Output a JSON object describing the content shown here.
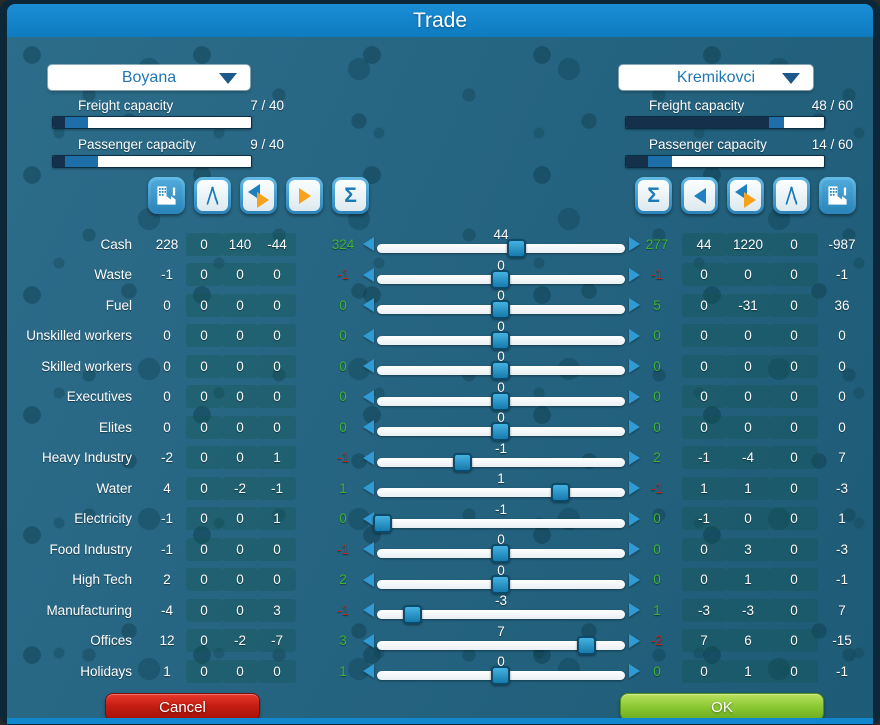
{
  "title": "Trade",
  "left_panel": {
    "city": "Boyana",
    "freight": {
      "label": "Freight capacity",
      "current": 7,
      "max": 40,
      "display": "7  /  40",
      "bar": {
        "dark": 0.06,
        "blue": 0.115
      }
    },
    "passenger": {
      "label": "Passenger capacity",
      "current": 9,
      "max": 40,
      "display": "9  /  40",
      "bar": {
        "dark": 0.06,
        "blue": 0.165
      }
    },
    "toolbar": [
      {
        "icon": "factory",
        "variant": "blue"
      },
      {
        "icon": "compass",
        "variant": "light"
      },
      {
        "icon": "transfer-both",
        "variant": "light"
      },
      {
        "icon": "transfer-right",
        "variant": "light"
      },
      {
        "icon": "sum",
        "variant": "light"
      }
    ]
  },
  "right_panel": {
    "city": "Kremikovci",
    "freight": {
      "label": "Freight capacity",
      "current": 48,
      "max": 60,
      "display": "48  /  60",
      "bar": {
        "dark": 0.72,
        "blue": 0.08
      }
    },
    "passenger": {
      "label": "Passenger capacity",
      "current": 14,
      "max": 60,
      "display": "14  /  60",
      "bar": {
        "dark": 0.11,
        "blue": 0.12
      }
    },
    "toolbar": [
      {
        "icon": "sum",
        "variant": "light"
      },
      {
        "icon": "transfer-left",
        "variant": "light"
      },
      {
        "icon": "transfer-both",
        "variant": "light"
      },
      {
        "icon": "compass",
        "variant": "light"
      },
      {
        "icon": "factory",
        "variant": "blue"
      }
    ]
  },
  "table": {
    "rows": [
      {
        "label": "Cash",
        "left": [
          "228",
          "0",
          "140",
          "-44"
        ],
        "left_total": "324",
        "left_total_color": "green",
        "slider": {
          "value": "44",
          "pos": 0.565
        },
        "right_total": "277",
        "right_total_color": "green",
        "right": [
          "44",
          "1220",
          "0",
          "-987"
        ]
      },
      {
        "label": "Waste",
        "left": [
          "-1",
          "0",
          "0",
          "0"
        ],
        "left_total": "-1",
        "left_total_color": "red",
        "slider": {
          "value": "0",
          "pos": 0.5
        },
        "right_total": "-1",
        "right_total_color": "red",
        "right": [
          "0",
          "0",
          "0",
          "-1"
        ]
      },
      {
        "label": "Fuel",
        "left": [
          "0",
          "0",
          "0",
          "0"
        ],
        "left_total": "0",
        "left_total_color": "green",
        "slider": {
          "value": "0",
          "pos": 0.5
        },
        "right_total": "5",
        "right_total_color": "green",
        "right": [
          "0",
          "-31",
          "0",
          "36"
        ]
      },
      {
        "label": "Unskilled workers",
        "left": [
          "0",
          "0",
          "0",
          "0"
        ],
        "left_total": "0",
        "left_total_color": "green",
        "slider": {
          "value": "0",
          "pos": 0.5
        },
        "right_total": "0",
        "right_total_color": "green",
        "right": [
          "0",
          "0",
          "0",
          "0"
        ]
      },
      {
        "label": "Skilled workers",
        "left": [
          "0",
          "0",
          "0",
          "0"
        ],
        "left_total": "0",
        "left_total_color": "green",
        "slider": {
          "value": "0",
          "pos": 0.5
        },
        "right_total": "0",
        "right_total_color": "green",
        "right": [
          "0",
          "0",
          "0",
          "0"
        ]
      },
      {
        "label": "Executives",
        "left": [
          "0",
          "0",
          "0",
          "0"
        ],
        "left_total": "0",
        "left_total_color": "green",
        "slider": {
          "value": "0",
          "pos": 0.5
        },
        "right_total": "0",
        "right_total_color": "green",
        "right": [
          "0",
          "0",
          "0",
          "0"
        ]
      },
      {
        "label": "Elites",
        "left": [
          "0",
          "0",
          "0",
          "0"
        ],
        "left_total": "0",
        "left_total_color": "green",
        "slider": {
          "value": "0",
          "pos": 0.5
        },
        "right_total": "0",
        "right_total_color": "green",
        "right": [
          "0",
          "0",
          "0",
          "0"
        ]
      },
      {
        "label": "Heavy Industry",
        "left": [
          "-2",
          "0",
          "0",
          "1"
        ],
        "left_total": "-1",
        "left_total_color": "red",
        "slider": {
          "value": "-1",
          "pos": 0.35
        },
        "right_total": "2",
        "right_total_color": "green",
        "right": [
          "-1",
          "-4",
          "0",
          "7"
        ]
      },
      {
        "label": "Water",
        "left": [
          "4",
          "0",
          "-2",
          "-1"
        ],
        "left_total": "1",
        "left_total_color": "green",
        "slider": {
          "value": "1",
          "pos": 0.74
        },
        "right_total": "-1",
        "right_total_color": "red",
        "right": [
          "1",
          "1",
          "0",
          "-3"
        ]
      },
      {
        "label": "Electricity",
        "left": [
          "-1",
          "0",
          "0",
          "1"
        ],
        "left_total": "0",
        "left_total_color": "green",
        "slider": {
          "value": "-1",
          "pos": 0.03
        },
        "right_total": "0",
        "right_total_color": "green",
        "right": [
          "-1",
          "0",
          "0",
          "1"
        ]
      },
      {
        "label": "Food Industry",
        "left": [
          "-1",
          "0",
          "0",
          "0"
        ],
        "left_total": "-1",
        "left_total_color": "red",
        "slider": {
          "value": "0",
          "pos": 0.5
        },
        "right_total": "0",
        "right_total_color": "green",
        "right": [
          "0",
          "3",
          "0",
          "-3"
        ]
      },
      {
        "label": "High Tech",
        "left": [
          "2",
          "0",
          "0",
          "0"
        ],
        "left_total": "2",
        "left_total_color": "green",
        "slider": {
          "value": "0",
          "pos": 0.5
        },
        "right_total": "0",
        "right_total_color": "green",
        "right": [
          "0",
          "1",
          "0",
          "-1"
        ]
      },
      {
        "label": "Manufacturing",
        "left": [
          "-4",
          "0",
          "0",
          "3"
        ],
        "left_total": "-1",
        "left_total_color": "red",
        "slider": {
          "value": "-3",
          "pos": 0.15
        },
        "right_total": "1",
        "right_total_color": "green",
        "right": [
          "-3",
          "-3",
          "0",
          "7"
        ]
      },
      {
        "label": "Offices",
        "left": [
          "12",
          "0",
          "-2",
          "-7"
        ],
        "left_total": "3",
        "left_total_color": "green",
        "slider": {
          "value": "7",
          "pos": 0.84
        },
        "right_total": "-2",
        "right_total_color": "red",
        "right": [
          "7",
          "6",
          "0",
          "-15"
        ]
      },
      {
        "label": "Holidays",
        "left": [
          "1",
          "0",
          "0",
          "0"
        ],
        "left_total": "1",
        "left_total_color": "green",
        "slider": {
          "value": "0",
          "pos": 0.5
        },
        "right_total": "0",
        "right_total_color": "green",
        "right": [
          "0",
          "1",
          "0",
          "-1"
        ]
      }
    ]
  },
  "footer": {
    "cancel": "Cancel",
    "ok": "OK"
  },
  "colors": {
    "green": "#3eb431",
    "red": "#c1271a",
    "accent_blue": "#1187cf",
    "orange": "#f6a21d",
    "handle_blue": "#2f9ad4"
  }
}
